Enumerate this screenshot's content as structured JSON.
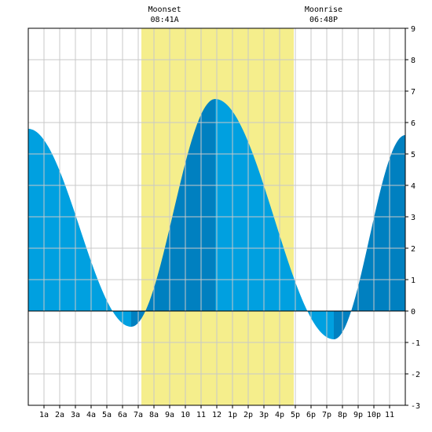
{
  "chart_data": {
    "type": "area",
    "title": "",
    "xlabel": "",
    "ylabel": "",
    "xlim": [
      0,
      24
    ],
    "ylim": [
      -3,
      9
    ],
    "grid": true,
    "colors": {
      "tide_rising": "#0080C0",
      "tide_falling": "#00A0E0",
      "daylight": "#F5EE8C",
      "grid": "#C8C8C8",
      "background": "#FFFFFF"
    },
    "x_ticks": [
      {
        "x": 1,
        "label": "1a"
      },
      {
        "x": 2,
        "label": "2a"
      },
      {
        "x": 3,
        "label": "3a"
      },
      {
        "x": 4,
        "label": "4a"
      },
      {
        "x": 5,
        "label": "5a"
      },
      {
        "x": 6,
        "label": "6a"
      },
      {
        "x": 7,
        "label": "7a"
      },
      {
        "x": 8,
        "label": "8a"
      },
      {
        "x": 9,
        "label": "9a"
      },
      {
        "x": 10,
        "label": "10"
      },
      {
        "x": 11,
        "label": "11"
      },
      {
        "x": 12,
        "label": "12"
      },
      {
        "x": 13,
        "label": "1p"
      },
      {
        "x": 14,
        "label": "2p"
      },
      {
        "x": 15,
        "label": "3p"
      },
      {
        "x": 16,
        "label": "4p"
      },
      {
        "x": 17,
        "label": "5p"
      },
      {
        "x": 18,
        "label": "6p"
      },
      {
        "x": 19,
        "label": "7p"
      },
      {
        "x": 20,
        "label": "8p"
      },
      {
        "x": 21,
        "label": "9p"
      },
      {
        "x": 22,
        "label": "10p"
      },
      {
        "x": 23,
        "label": "11"
      }
    ],
    "y_ticks": [
      -3,
      -2,
      -1,
      0,
      1,
      2,
      3,
      4,
      5,
      6,
      7,
      8,
      9
    ],
    "daylight": {
      "start": 7.2,
      "end": 16.9
    },
    "annotations": [
      {
        "x": 8.68,
        "title": "Moonset",
        "time": "08:41A"
      },
      {
        "x": 18.8,
        "title": "Moonrise",
        "time": "06:48P"
      }
    ],
    "tide_extremes": [
      {
        "x": 0.0,
        "y": 5.8
      },
      {
        "x": 6.55,
        "y": -0.5
      },
      {
        "x": 11.9,
        "y": 6.75
      },
      {
        "x": 19.45,
        "y": -0.9
      },
      {
        "x": 24.0,
        "y": 5.6
      }
    ]
  }
}
